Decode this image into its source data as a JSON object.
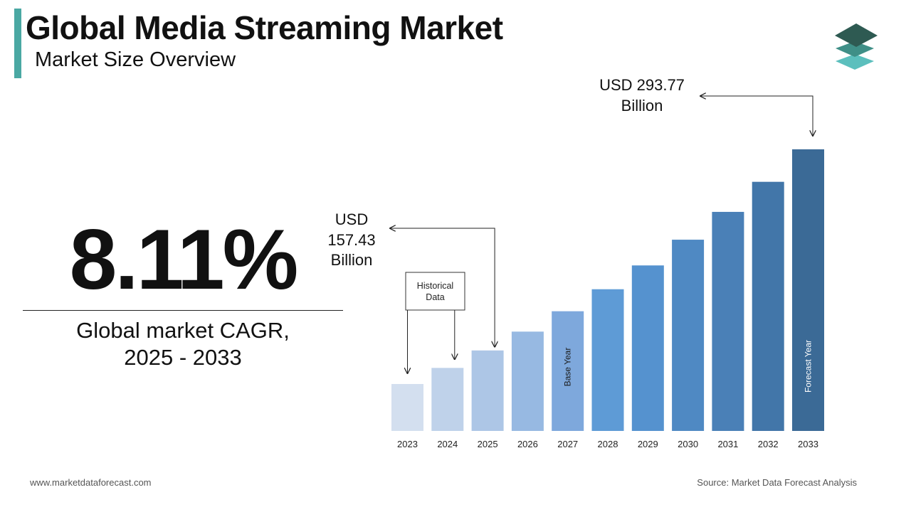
{
  "header": {
    "title": "Global Media Streaming Market",
    "subtitle": "Market Size Overview"
  },
  "cagr": {
    "value": "8.11%",
    "label_line1": "Global market CAGR,",
    "label_line2": "2025 - 2033"
  },
  "colors": {
    "accent": "#4aa8a3",
    "bars": [
      "#d3dfef",
      "#bfd2ea",
      "#adc6e6",
      "#97b9e2",
      "#7ea8dc",
      "#5e9bd6",
      "#5592cf",
      "#4f89c3",
      "#4a80b7",
      "#4276a9",
      "#3b6a96"
    ]
  },
  "chart_data": {
    "type": "bar",
    "categories": [
      "2023",
      "2024",
      "2025",
      "2026",
      "2027",
      "2028",
      "2029",
      "2030",
      "2031",
      "2032",
      "2033"
    ],
    "values": [
      134.68,
      145.6,
      157.43,
      170.2,
      184.01,
      198.93,
      215.07,
      232.51,
      251.37,
      271.75,
      293.77
    ],
    "unit": "USD Billion",
    "annotations": {
      "start_value_lines": [
        "USD",
        "157.43",
        "Billion"
      ],
      "end_value_lines": [
        "USD 293.77",
        "Billion"
      ],
      "historical_lines": [
        "Historical",
        "Data"
      ],
      "base_year_label": "Base Year",
      "forecast_year_label": "Forecast Year"
    }
  },
  "footer": {
    "website": "www.marketdataforecast.com",
    "source": "Source: Market Data Forecast Analysis"
  }
}
